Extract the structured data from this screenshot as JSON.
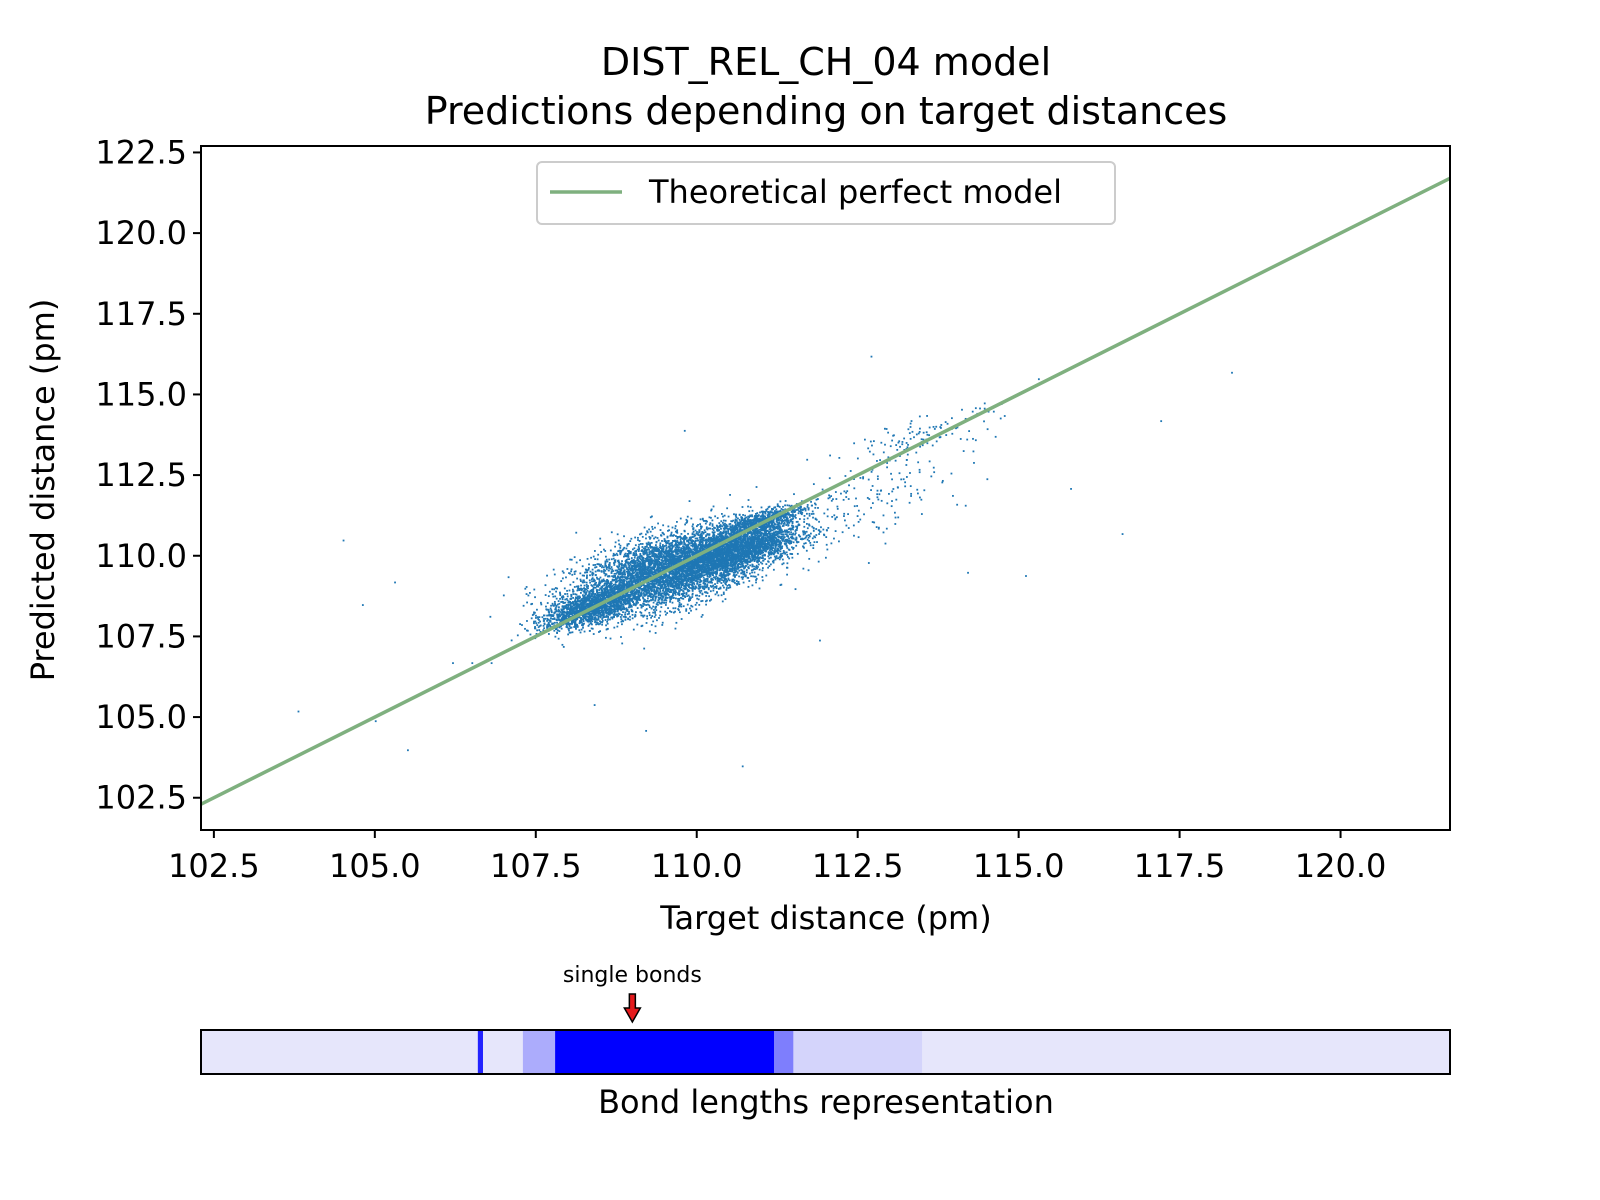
{
  "chart_data": {
    "type": "scatter",
    "title": "DIST_REL_CH_04 model",
    "subtitle": "Predictions depending on target distances",
    "xlabel": "Target distance (pm)",
    "ylabel": "Predicted distance (pm)",
    "xlim": [
      102.3,
      121.7
    ],
    "ylim": [
      101.5,
      122.7
    ],
    "x_ticks": [
      "102.5",
      "105.0",
      "107.5",
      "110.0",
      "112.5",
      "115.0",
      "117.5",
      "120.0"
    ],
    "y_ticks": [
      "102.5",
      "105.0",
      "107.5",
      "110.0",
      "112.5",
      "115.0",
      "117.5",
      "120.0",
      "122.5"
    ],
    "grid": false,
    "legend_position": "top-center",
    "series": [
      {
        "name": "Theoretical perfect model",
        "kind": "line",
        "color": "#7fb07f",
        "x": [
          102.3,
          121.7
        ],
        "y": [
          102.3,
          121.7
        ]
      },
      {
        "kind": "scatter",
        "color": "#1f77b4",
        "clusters": [
          {
            "cx": 109.6,
            "cy": 109.6,
            "sx": 0.75,
            "sy": 0.55,
            "n": 5200
          },
          {
            "cx": 108.3,
            "cy": 108.4,
            "sx": 0.35,
            "sy": 0.25,
            "n": 1400
          },
          {
            "cx": 110.6,
            "cy": 110.2,
            "sx": 0.5,
            "sy": 0.35,
            "n": 2200
          },
          {
            "cx": 111.0,
            "cy": 111.1,
            "sx": 0.35,
            "sy": 0.15,
            "n": 600
          },
          {
            "cx": 113.5,
            "cy": 113.7,
            "sx": 0.6,
            "sy": 0.3,
            "n": 120
          },
          {
            "cx": 112.6,
            "cy": 111.8,
            "sx": 0.8,
            "sy": 0.6,
            "n": 150
          }
        ],
        "outliers": [
          [
            106.5,
            106.7
          ],
          [
            106.8,
            106.7
          ],
          [
            106.2,
            106.7
          ],
          [
            104.5,
            110.5
          ],
          [
            104.8,
            108.5
          ],
          [
            105.3,
            109.2
          ],
          [
            103.8,
            105.2
          ],
          [
            105.0,
            104.9
          ],
          [
            105.5,
            104.0
          ],
          [
            108.4,
            105.4
          ],
          [
            109.2,
            104.6
          ],
          [
            110.7,
            103.5
          ],
          [
            111.9,
            107.4
          ],
          [
            109.8,
            113.9
          ],
          [
            112.7,
            116.2
          ],
          [
            115.3,
            115.5
          ],
          [
            118.3,
            115.7
          ],
          [
            117.2,
            114.2
          ],
          [
            115.8,
            112.1
          ],
          [
            116.6,
            110.7
          ],
          [
            115.1,
            109.4
          ],
          [
            114.2,
            109.5
          ],
          [
            109.4,
            108.1
          ],
          [
            113.2,
            112.4
          ],
          [
            113.8,
            112.3
          ],
          [
            114.5,
            112.4
          ]
        ]
      }
    ],
    "bond_strip": {
      "label": "Bond lengths representation",
      "annotation": "single bonds",
      "annotation_x": 109.0,
      "arrow_color": "#e41a1c",
      "base_color": "#e6e6fb",
      "strong_color": "#0000ff",
      "bands": [
        {
          "from": 106.6,
          "to": 106.68,
          "level": 0.85
        },
        {
          "from": 107.3,
          "to": 107.8,
          "level": 0.25
        },
        {
          "from": 107.8,
          "to": 111.2,
          "level": 1.0
        },
        {
          "from": 111.2,
          "to": 111.5,
          "level": 0.45
        },
        {
          "from": 111.5,
          "to": 113.5,
          "level": 0.08
        }
      ]
    }
  }
}
